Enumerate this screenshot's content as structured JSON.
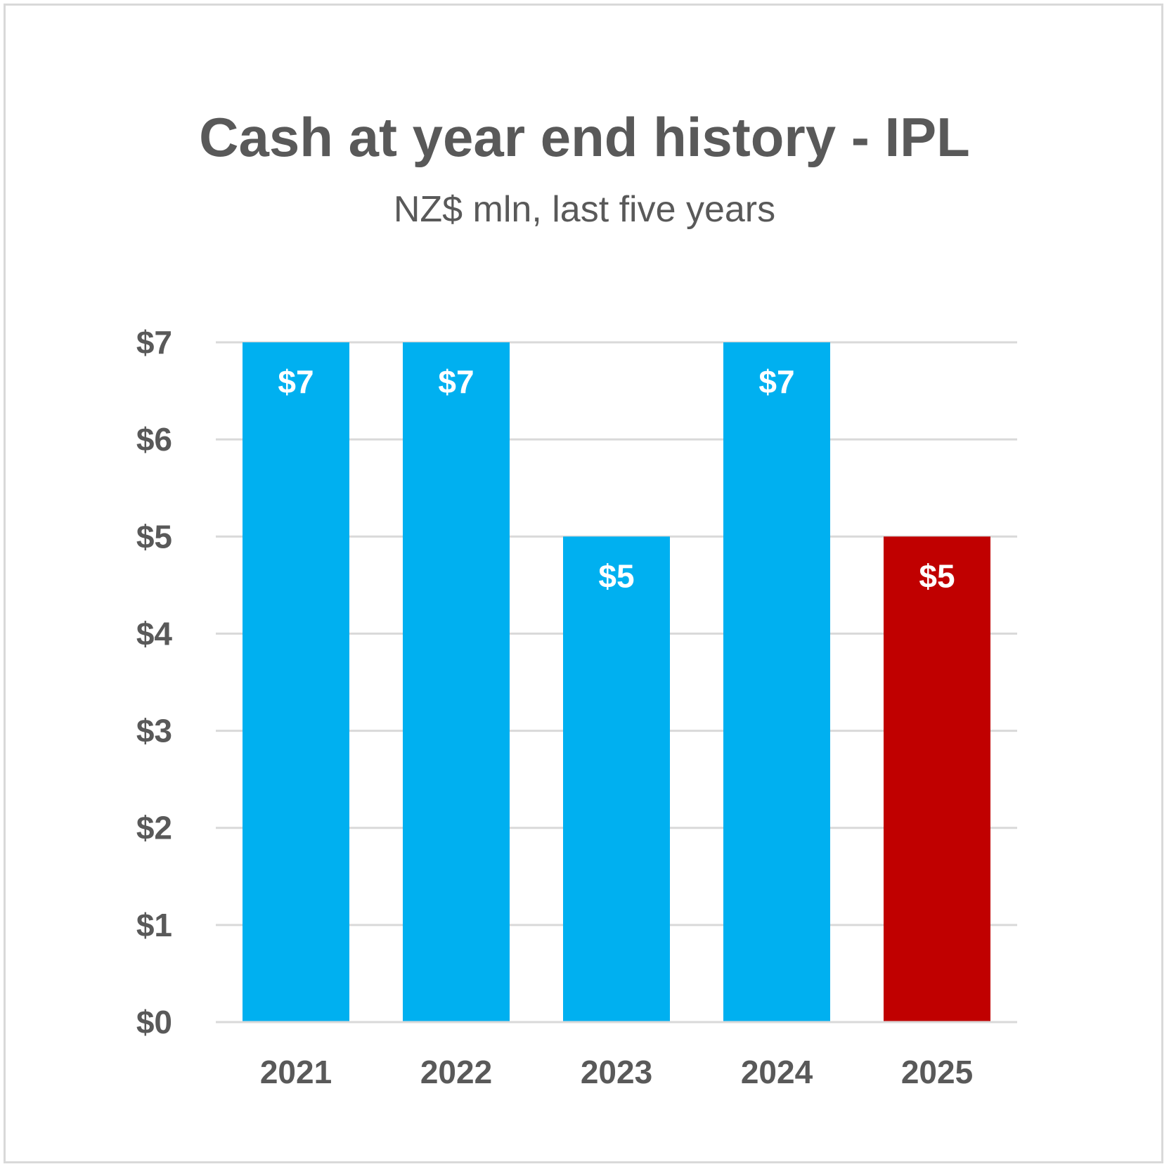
{
  "chart_data": {
    "type": "bar",
    "title": "Cash at year end history - IPL",
    "subtitle": "NZ$ mln, last five years",
    "categories": [
      "2021",
      "2022",
      "2023",
      "2024",
      "2025"
    ],
    "values": [
      7,
      7,
      5,
      7,
      5
    ],
    "data_labels": [
      "$7",
      "$7",
      "$5",
      "$7",
      "$5"
    ],
    "bar_colors": [
      "#00B0F0",
      "#00B0F0",
      "#00B0F0",
      "#00B0F0",
      "#C00000"
    ],
    "ylim": [
      0,
      7
    ],
    "yticks": [
      0,
      1,
      2,
      3,
      4,
      5,
      6,
      7
    ],
    "ytick_labels": [
      "$0",
      "$1",
      "$2",
      "$3",
      "$4",
      "$5",
      "$6",
      "$7"
    ],
    "grid": true,
    "xlabel": "",
    "ylabel": ""
  }
}
